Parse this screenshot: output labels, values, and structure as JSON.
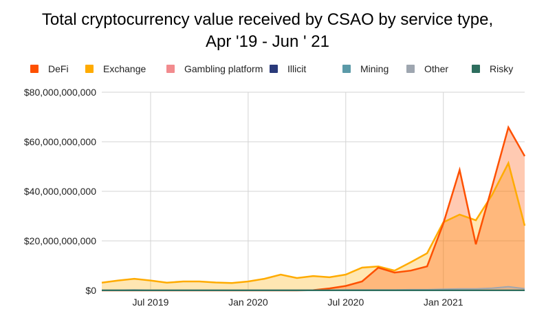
{
  "chart_data": {
    "type": "area",
    "title_line1": "Total cryptocurrency value received by CSAO by service type,",
    "title_line2": "Apr '19 - Jun ' 21",
    "xlabel": "",
    "ylabel": "",
    "ylim": [
      0,
      80000000000
    ],
    "grid": true,
    "legend_position": "top",
    "yticks": [
      {
        "value": 0,
        "label": "$0"
      },
      {
        "value": 20000000000,
        "label": "$20,000,000,000"
      },
      {
        "value": 40000000000,
        "label": "$40,000,000,000"
      },
      {
        "value": 60000000000,
        "label": "$60,000,000,000"
      },
      {
        "value": 80000000000,
        "label": "$80,000,000,000"
      }
    ],
    "xticks": [
      {
        "index": 3,
        "label": "Jul 2019"
      },
      {
        "index": 9,
        "label": "Jan 2020"
      },
      {
        "index": 15,
        "label": "Jul 2020"
      },
      {
        "index": 21,
        "label": "Jan 2021"
      }
    ],
    "x": [
      "Apr 2019",
      "May 2019",
      "Jun 2019",
      "Jul 2019",
      "Aug 2019",
      "Sep 2019",
      "Oct 2019",
      "Nov 2019",
      "Dec 2019",
      "Jan 2020",
      "Feb 2020",
      "Mar 2020",
      "Apr 2020",
      "May 2020",
      "Jun 2020",
      "Jul 2020",
      "Aug 2020",
      "Sep 2020",
      "Oct 2020",
      "Nov 2020",
      "Dec 2020",
      "Jan 2021",
      "Feb 2021",
      "Mar 2021",
      "Apr 2021",
      "May 2021",
      "Jun 2021"
    ],
    "series": [
      {
        "name": "DeFi",
        "color": "#fe5000",
        "fill": "#fec7b0",
        "values": [
          0,
          0,
          0,
          0,
          0,
          0,
          0,
          0,
          0,
          0,
          0,
          0,
          0,
          0.1,
          0.8,
          1.8,
          3.6,
          9.2,
          7.2,
          8.0,
          9.7,
          27.0,
          48.6,
          18.6,
          42.0,
          65.8,
          54.2
        ]
      },
      {
        "name": "Exchange",
        "color": "#ffab00",
        "fill": "#ffe3ae",
        "values": [
          3.1,
          4.0,
          4.7,
          4.0,
          3.1,
          3.6,
          3.6,
          3.2,
          3.0,
          3.6,
          4.7,
          6.4,
          5.0,
          5.8,
          5.3,
          6.4,
          9.2,
          9.7,
          8.0,
          11.4,
          15.0,
          27.5,
          30.6,
          28.3,
          38.6,
          51.4,
          26.1
        ]
      },
      {
        "name": "Gambling platform",
        "color": "#f28b8e",
        "fill": "#f9c5c6",
        "values": [
          0,
          0,
          0,
          0,
          0,
          0,
          0,
          0,
          0,
          0,
          0,
          0,
          0,
          0,
          0,
          0,
          0,
          0,
          0,
          0,
          0,
          0,
          0,
          0,
          0,
          0,
          0
        ]
      },
      {
        "name": "Illicit",
        "color": "#2a3a7a",
        "fill": "#a9b0cb",
        "values": [
          0,
          0,
          0,
          0,
          0,
          0,
          0,
          0,
          0,
          0,
          0,
          0,
          0,
          0,
          0,
          0,
          0,
          0,
          0,
          0,
          0,
          0,
          0,
          0,
          0,
          0,
          0
        ]
      },
      {
        "name": "Mining",
        "color": "#5b9aa8",
        "fill": "#bdd7dc",
        "values": [
          0,
          0,
          0,
          0,
          0,
          0,
          0,
          0,
          0,
          0,
          0,
          0,
          0,
          0,
          0,
          0,
          0,
          0,
          0,
          0,
          0,
          0,
          0,
          0,
          0,
          0,
          0
        ]
      },
      {
        "name": "Other",
        "color": "#9ea6b0",
        "fill": "#d8dbdf",
        "values": [
          0.1,
          0.1,
          0.2,
          0.1,
          0.1,
          0.1,
          0.1,
          0.1,
          0.1,
          0.1,
          0.1,
          0.1,
          0.1,
          0.1,
          0.1,
          0.2,
          0.2,
          0.2,
          0.2,
          0.3,
          0.3,
          0.5,
          0.6,
          0.6,
          0.9,
          1.5,
          0.7
        ]
      },
      {
        "name": "Risky",
        "color": "#2e6e5e",
        "fill": "#a8c7bf",
        "values": [
          0.05,
          0.05,
          0.05,
          0.05,
          0.05,
          0.05,
          0.05,
          0.05,
          0.05,
          0.05,
          0.05,
          0.05,
          0.05,
          0.05,
          0.05,
          0.05,
          0.05,
          0.05,
          0.05,
          0.05,
          0.05,
          0.05,
          0.05,
          0.05,
          0.05,
          0.05,
          0.05
        ]
      }
    ],
    "value_unit": "billion USD"
  }
}
